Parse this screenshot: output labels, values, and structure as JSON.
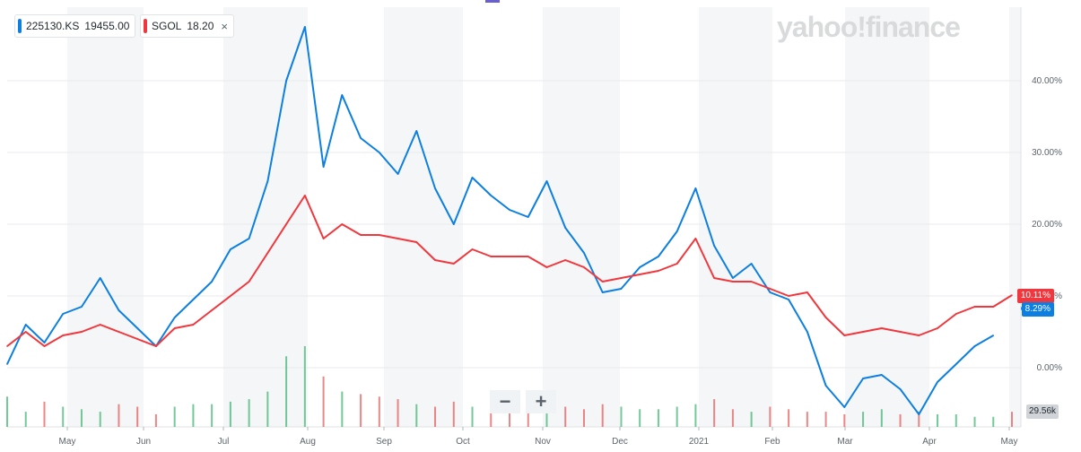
{
  "legend": [
    {
      "symbol": "225130.KS",
      "value": "19455.00",
      "color": "#0c7fe2"
    },
    {
      "symbol": "SGOL",
      "value": "18.20",
      "color": "#f1373d"
    }
  ],
  "legend_close_icon": "×",
  "logo_text": "yahoo!finance",
  "zoom_out_label": "−",
  "zoom_in_label": "+",
  "last_value_tags": {
    "sgol": "10.11%",
    "ks": "8.29%"
  },
  "volume_tag": "29.56k",
  "chart_data": {
    "type": "line",
    "x": [
      "2020-04-17",
      "2020-04-24",
      "2020-05-01",
      "2020-05-08",
      "2020-05-15",
      "2020-05-22",
      "2020-05-29",
      "2020-06-05",
      "2020-06-12",
      "2020-06-19",
      "2020-06-26",
      "2020-07-03",
      "2020-07-10",
      "2020-07-17",
      "2020-07-24",
      "2020-07-31",
      "2020-08-07",
      "2020-08-14",
      "2020-08-21",
      "2020-08-28",
      "2020-09-04",
      "2020-09-11",
      "2020-09-18",
      "2020-09-25",
      "2020-10-02",
      "2020-10-09",
      "2020-10-16",
      "2020-10-23",
      "2020-10-30",
      "2020-11-06",
      "2020-11-13",
      "2020-11-20",
      "2020-11-27",
      "2020-12-04",
      "2020-12-11",
      "2020-12-18",
      "2020-12-25",
      "2021-01-01",
      "2021-01-08",
      "2021-01-15",
      "2021-01-22",
      "2021-01-29",
      "2021-02-05",
      "2021-02-12",
      "2021-02-19",
      "2021-02-26",
      "2021-03-05",
      "2021-03-12",
      "2021-03-19",
      "2021-03-26",
      "2021-04-02",
      "2021-04-09",
      "2021-04-16",
      "2021-04-23",
      "2021-04-30"
    ],
    "series": [
      {
        "name": "225130.KS",
        "color": "#0c7fe2",
        "values": [
          0.5,
          6.0,
          3.5,
          7.5,
          8.5,
          12.5,
          8.0,
          5.5,
          3.0,
          7.0,
          9.5,
          12.0,
          16.5,
          18.0,
          26.0,
          40.0,
          47.5,
          28.0,
          38.0,
          32.0,
          30.0,
          27.0,
          33.0,
          25.0,
          20.0,
          26.5,
          24.0,
          22.0,
          21.0,
          26.0,
          19.5,
          16.0,
          10.5,
          11.0,
          14.0,
          15.5,
          19.0,
          25.0,
          17.0,
          12.5,
          14.5,
          10.5,
          9.5,
          5.0,
          -2.5,
          -5.5,
          -1.5,
          -1.0,
          -3.0,
          -6.5,
          -2.0,
          0.5,
          3.0,
          4.5,
          null
        ]
      },
      {
        "name": "SGOL",
        "color": "#f1373d",
        "values": [
          3.0,
          5.0,
          3.0,
          4.5,
          5.0,
          6.0,
          5.0,
          4.0,
          3.0,
          5.5,
          6.0,
          8.0,
          10.0,
          12.0,
          16.0,
          20.0,
          24.0,
          18.0,
          20.0,
          18.5,
          18.5,
          18.0,
          17.5,
          15.0,
          14.5,
          16.5,
          15.5,
          15.5,
          15.5,
          14.0,
          15.0,
          14.0,
          12.0,
          12.5,
          13.0,
          13.5,
          14.5,
          18.0,
          12.5,
          12.0,
          12.0,
          11.0,
          10.0,
          10.5,
          7.0,
          4.5,
          5.0,
          5.5,
          5.0,
          4.5,
          5.5,
          7.5,
          8.5,
          8.5,
          10.11
        ]
      }
    ],
    "x_ticks": [
      "May",
      "Jun",
      "Jul",
      "Aug",
      "Sep",
      "Oct",
      "Nov",
      "Dec",
      "2021",
      "Feb",
      "Mar",
      "Apr",
      "May"
    ],
    "y_ticks": [
      "0.00%",
      "10.00%",
      "20.00%",
      "30.00%",
      "40.00%"
    ],
    "ylim": [
      -8,
      50
    ],
    "grid": true,
    "volume": [
      12,
      6,
      10,
      8,
      7,
      6,
      9,
      8,
      5,
      8,
      9,
      9,
      10,
      11,
      14,
      28,
      32,
      20,
      14,
      13,
      12,
      11,
      9,
      8,
      10,
      8,
      7,
      7,
      7,
      9,
      8,
      7,
      9,
      8,
      7,
      7,
      8,
      9,
      11,
      7,
      6,
      8,
      7,
      6,
      6,
      5,
      6,
      7,
      5,
      6,
      5,
      5,
      4,
      4,
      6
    ]
  }
}
